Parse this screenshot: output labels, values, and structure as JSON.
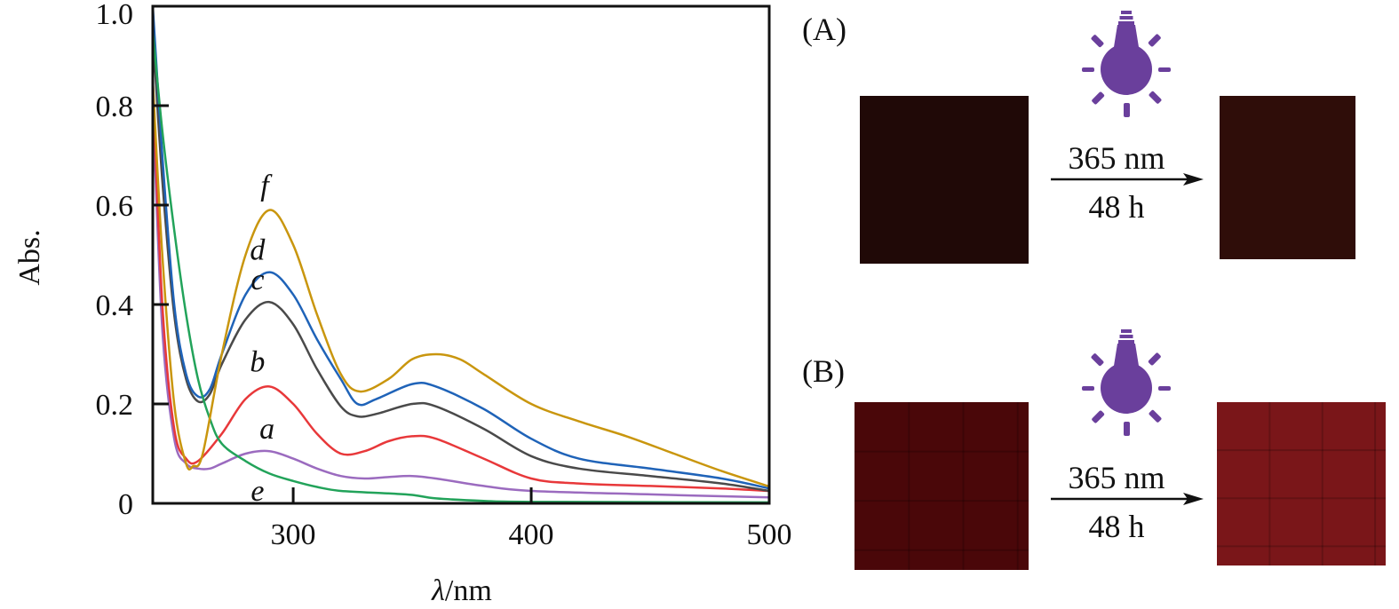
{
  "chart_data": {
    "type": "line",
    "xlabel_symbol": "λ",
    "xlabel_unit": "/nm",
    "ylabel": "Abs.",
    "xlim": [
      241,
      500
    ],
    "ylim": [
      0,
      1.0
    ],
    "xticks": [
      300,
      400,
      500
    ],
    "yticks": [
      0,
      0.2,
      0.4,
      0.6,
      0.8,
      1.0
    ],
    "ytick_labels": [
      "0",
      "0.2",
      "0.4",
      "0.6",
      "0.8",
      "1.0"
    ],
    "xtick_labels": [
      "300",
      "400",
      "500"
    ],
    "grid": false,
    "series": [
      {
        "name": "a",
        "color": "#9b6bbf",
        "x": [
          241,
          245,
          250,
          255,
          260,
          265,
          270,
          280,
          290,
          300,
          310,
          320,
          330,
          340,
          350,
          360,
          380,
          400,
          450,
          500
        ],
        "y": [
          0.8,
          0.35,
          0.13,
          0.08,
          0.07,
          0.07,
          0.08,
          0.1,
          0.105,
          0.09,
          0.07,
          0.055,
          0.05,
          0.053,
          0.055,
          0.05,
          0.035,
          0.025,
          0.018,
          0.012
        ],
        "label_at": [
          289,
          0.13
        ]
      },
      {
        "name": "b",
        "color": "#e8383a",
        "x": [
          241,
          245,
          250,
          255,
          260,
          270,
          280,
          290,
          300,
          310,
          320,
          330,
          340,
          350,
          360,
          380,
          400,
          420,
          450,
          480,
          500
        ],
        "y": [
          0.85,
          0.4,
          0.15,
          0.09,
          0.085,
          0.14,
          0.21,
          0.235,
          0.2,
          0.14,
          0.1,
          0.105,
          0.125,
          0.135,
          0.13,
          0.09,
          0.05,
          0.04,
          0.035,
          0.03,
          0.025
        ],
        "label_at": [
          285,
          0.265
        ]
      },
      {
        "name": "c",
        "color": "#4a4a4a",
        "x": [
          241,
          245,
          250,
          255,
          260,
          265,
          270,
          280,
          290,
          300,
          310,
          320,
          327,
          335,
          350,
          360,
          380,
          400,
          420,
          450,
          480,
          500
        ],
        "y": [
          0.95,
          0.65,
          0.38,
          0.25,
          0.205,
          0.22,
          0.28,
          0.37,
          0.405,
          0.36,
          0.27,
          0.195,
          0.175,
          0.18,
          0.2,
          0.195,
          0.15,
          0.095,
          0.07,
          0.055,
          0.04,
          0.025
        ],
        "label_at": [
          285,
          0.43
        ]
      },
      {
        "name": "d",
        "color": "#1f63b8",
        "x": [
          241,
          245,
          250,
          255,
          260,
          265,
          270,
          280,
          290,
          300,
          310,
          320,
          327,
          335,
          350,
          360,
          380,
          400,
          420,
          450,
          480,
          500
        ],
        "y": [
          1.0,
          0.7,
          0.4,
          0.26,
          0.215,
          0.23,
          0.3,
          0.42,
          0.465,
          0.42,
          0.33,
          0.25,
          0.2,
          0.21,
          0.24,
          0.235,
          0.19,
          0.13,
          0.09,
          0.07,
          0.05,
          0.03
        ],
        "label_at": [
          285,
          0.49
        ]
      },
      {
        "name": "e",
        "color": "#22a35a",
        "x": [
          241,
          245,
          250,
          255,
          260,
          265,
          270,
          280,
          290,
          300,
          310,
          320,
          340,
          350,
          360,
          380,
          400,
          500
        ],
        "y": [
          0.95,
          0.75,
          0.55,
          0.38,
          0.25,
          0.17,
          0.12,
          0.085,
          0.06,
          0.045,
          0.033,
          0.025,
          0.02,
          0.017,
          0.01,
          0.005,
          0.003,
          0.002
        ],
        "label_at": [
          285,
          0.005
        ]
      },
      {
        "name": "f",
        "color": "#c9960e",
        "x": [
          241,
          245,
          250,
          255,
          258,
          262,
          270,
          280,
          290,
          300,
          310,
          320,
          328,
          340,
          350,
          360,
          370,
          380,
          400,
          420,
          440,
          460,
          480,
          500
        ],
        "y": [
          0.85,
          0.5,
          0.2,
          0.08,
          0.075,
          0.1,
          0.3,
          0.5,
          0.59,
          0.52,
          0.38,
          0.26,
          0.225,
          0.25,
          0.29,
          0.3,
          0.29,
          0.26,
          0.2,
          0.165,
          0.135,
          0.1,
          0.065,
          0.034
        ],
        "label_at": [
          288,
          0.62
        ]
      }
    ]
  },
  "panels": {
    "A": {
      "label": "(A)",
      "wavelength": "365 nm",
      "time": "48 h",
      "before_color": "#200907",
      "after_color": "#2f0d09"
    },
    "B": {
      "label": "(B)",
      "wavelength": "365 nm",
      "time": "48 h",
      "before_color": "#4a0709",
      "after_color": "#7a1619"
    },
    "icon": "light-bulb-icon",
    "icon_color": "#6a3f9c"
  }
}
